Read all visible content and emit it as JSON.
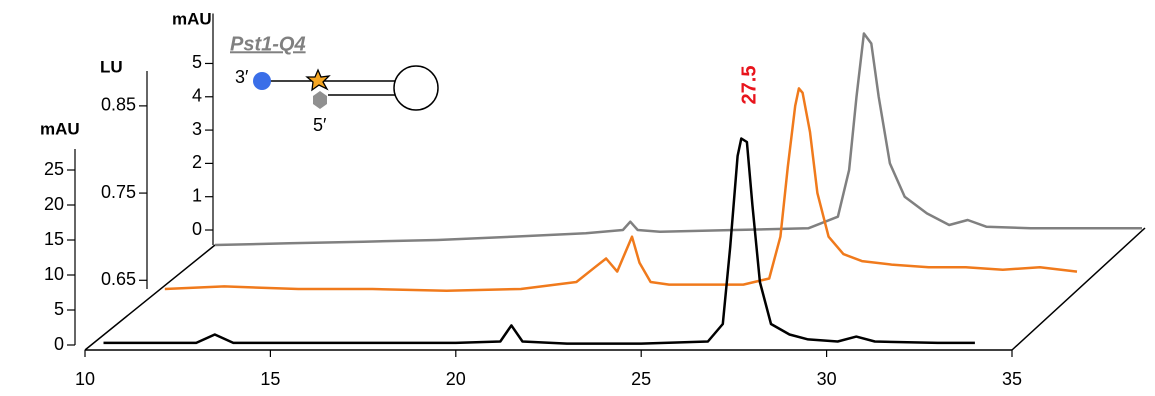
{
  "chart_data": [
    {
      "type": "line",
      "ylabel": "mAU",
      "color": "#000000",
      "annotation": "27.5",
      "x": [
        10.5,
        13,
        13.5,
        14,
        16,
        18,
        20,
        21.2,
        21.5,
        21.8,
        23,
        25,
        26.8,
        27.2,
        27.4,
        27.6,
        27.7,
        27.85,
        28,
        28.2,
        28.5,
        29,
        29.5,
        30.3,
        30.8,
        31.3,
        33,
        34
      ],
      "values": [
        0.3,
        0.3,
        1.5,
        0.3,
        0.3,
        0.3,
        0.3,
        0.5,
        2.8,
        0.5,
        0.2,
        0.2,
        0.5,
        3,
        14,
        27,
        29.5,
        29,
        20,
        9,
        3,
        1.5,
        0.8,
        0.5,
        1.2,
        0.5,
        0.3,
        0.3
      ],
      "xlim": [
        10,
        35
      ],
      "xticks": [
        10,
        15,
        20,
        25,
        30,
        35
      ],
      "ylim": [
        0,
        28
      ],
      "yticks": [
        0,
        5,
        10,
        15,
        20,
        25
      ]
    },
    {
      "type": "line",
      "ylabel": "LU",
      "color": "#f07a1c",
      "x": [
        10.4,
        12,
        14,
        16,
        18,
        20,
        21.5,
        22,
        22.3,
        22.6,
        22.8,
        23,
        23.2,
        23.5,
        24,
        26,
        26.7,
        27,
        27.2,
        27.4,
        27.5,
        27.6,
        27.8,
        28,
        28.3,
        28.7,
        29.2,
        30,
        31,
        32,
        33,
        34,
        35
      ],
      "values": [
        0.64,
        0.643,
        0.64,
        0.64,
        0.638,
        0.64,
        0.648,
        0.665,
        0.675,
        0.66,
        0.68,
        0.7,
        0.67,
        0.648,
        0.645,
        0.645,
        0.652,
        0.7,
        0.78,
        0.85,
        0.87,
        0.865,
        0.82,
        0.75,
        0.7,
        0.68,
        0.672,
        0.668,
        0.665,
        0.665,
        0.662,
        0.665,
        0.66
      ],
      "xlim": [
        10,
        35
      ],
      "ylim": [
        0.64,
        0.89
      ],
      "yticks": [
        0.65,
        0.75,
        0.85
      ]
    },
    {
      "type": "line",
      "ylabel": "mAU",
      "color": "#808080",
      "title": "Pst1-Q4",
      "label_3": "3′",
      "label_5": "5′",
      "x": [
        10,
        12,
        14,
        16,
        18,
        20,
        21,
        21.2,
        21.4,
        22,
        24,
        26,
        26.8,
        27.1,
        27.3,
        27.5,
        27.7,
        27.9,
        28.2,
        28.6,
        29.2,
        29.8,
        30.3,
        30.8,
        32,
        34,
        35
      ],
      "values": [
        -0.45,
        -0.4,
        -0.35,
        -0.3,
        -0.2,
        -0.1,
        0,
        0.25,
        0,
        -0.05,
        0,
        0.05,
        0.4,
        1.8,
        4,
        5.9,
        5.6,
        4,
        2,
        1,
        0.5,
        0.15,
        0.3,
        0.1,
        0.05,
        0.05,
        0.05
      ],
      "xlim": [
        10,
        35
      ],
      "ylim": [
        -0.45,
        6.5
      ],
      "yticks": [
        0,
        1,
        2,
        3,
        4,
        5
      ]
    }
  ]
}
